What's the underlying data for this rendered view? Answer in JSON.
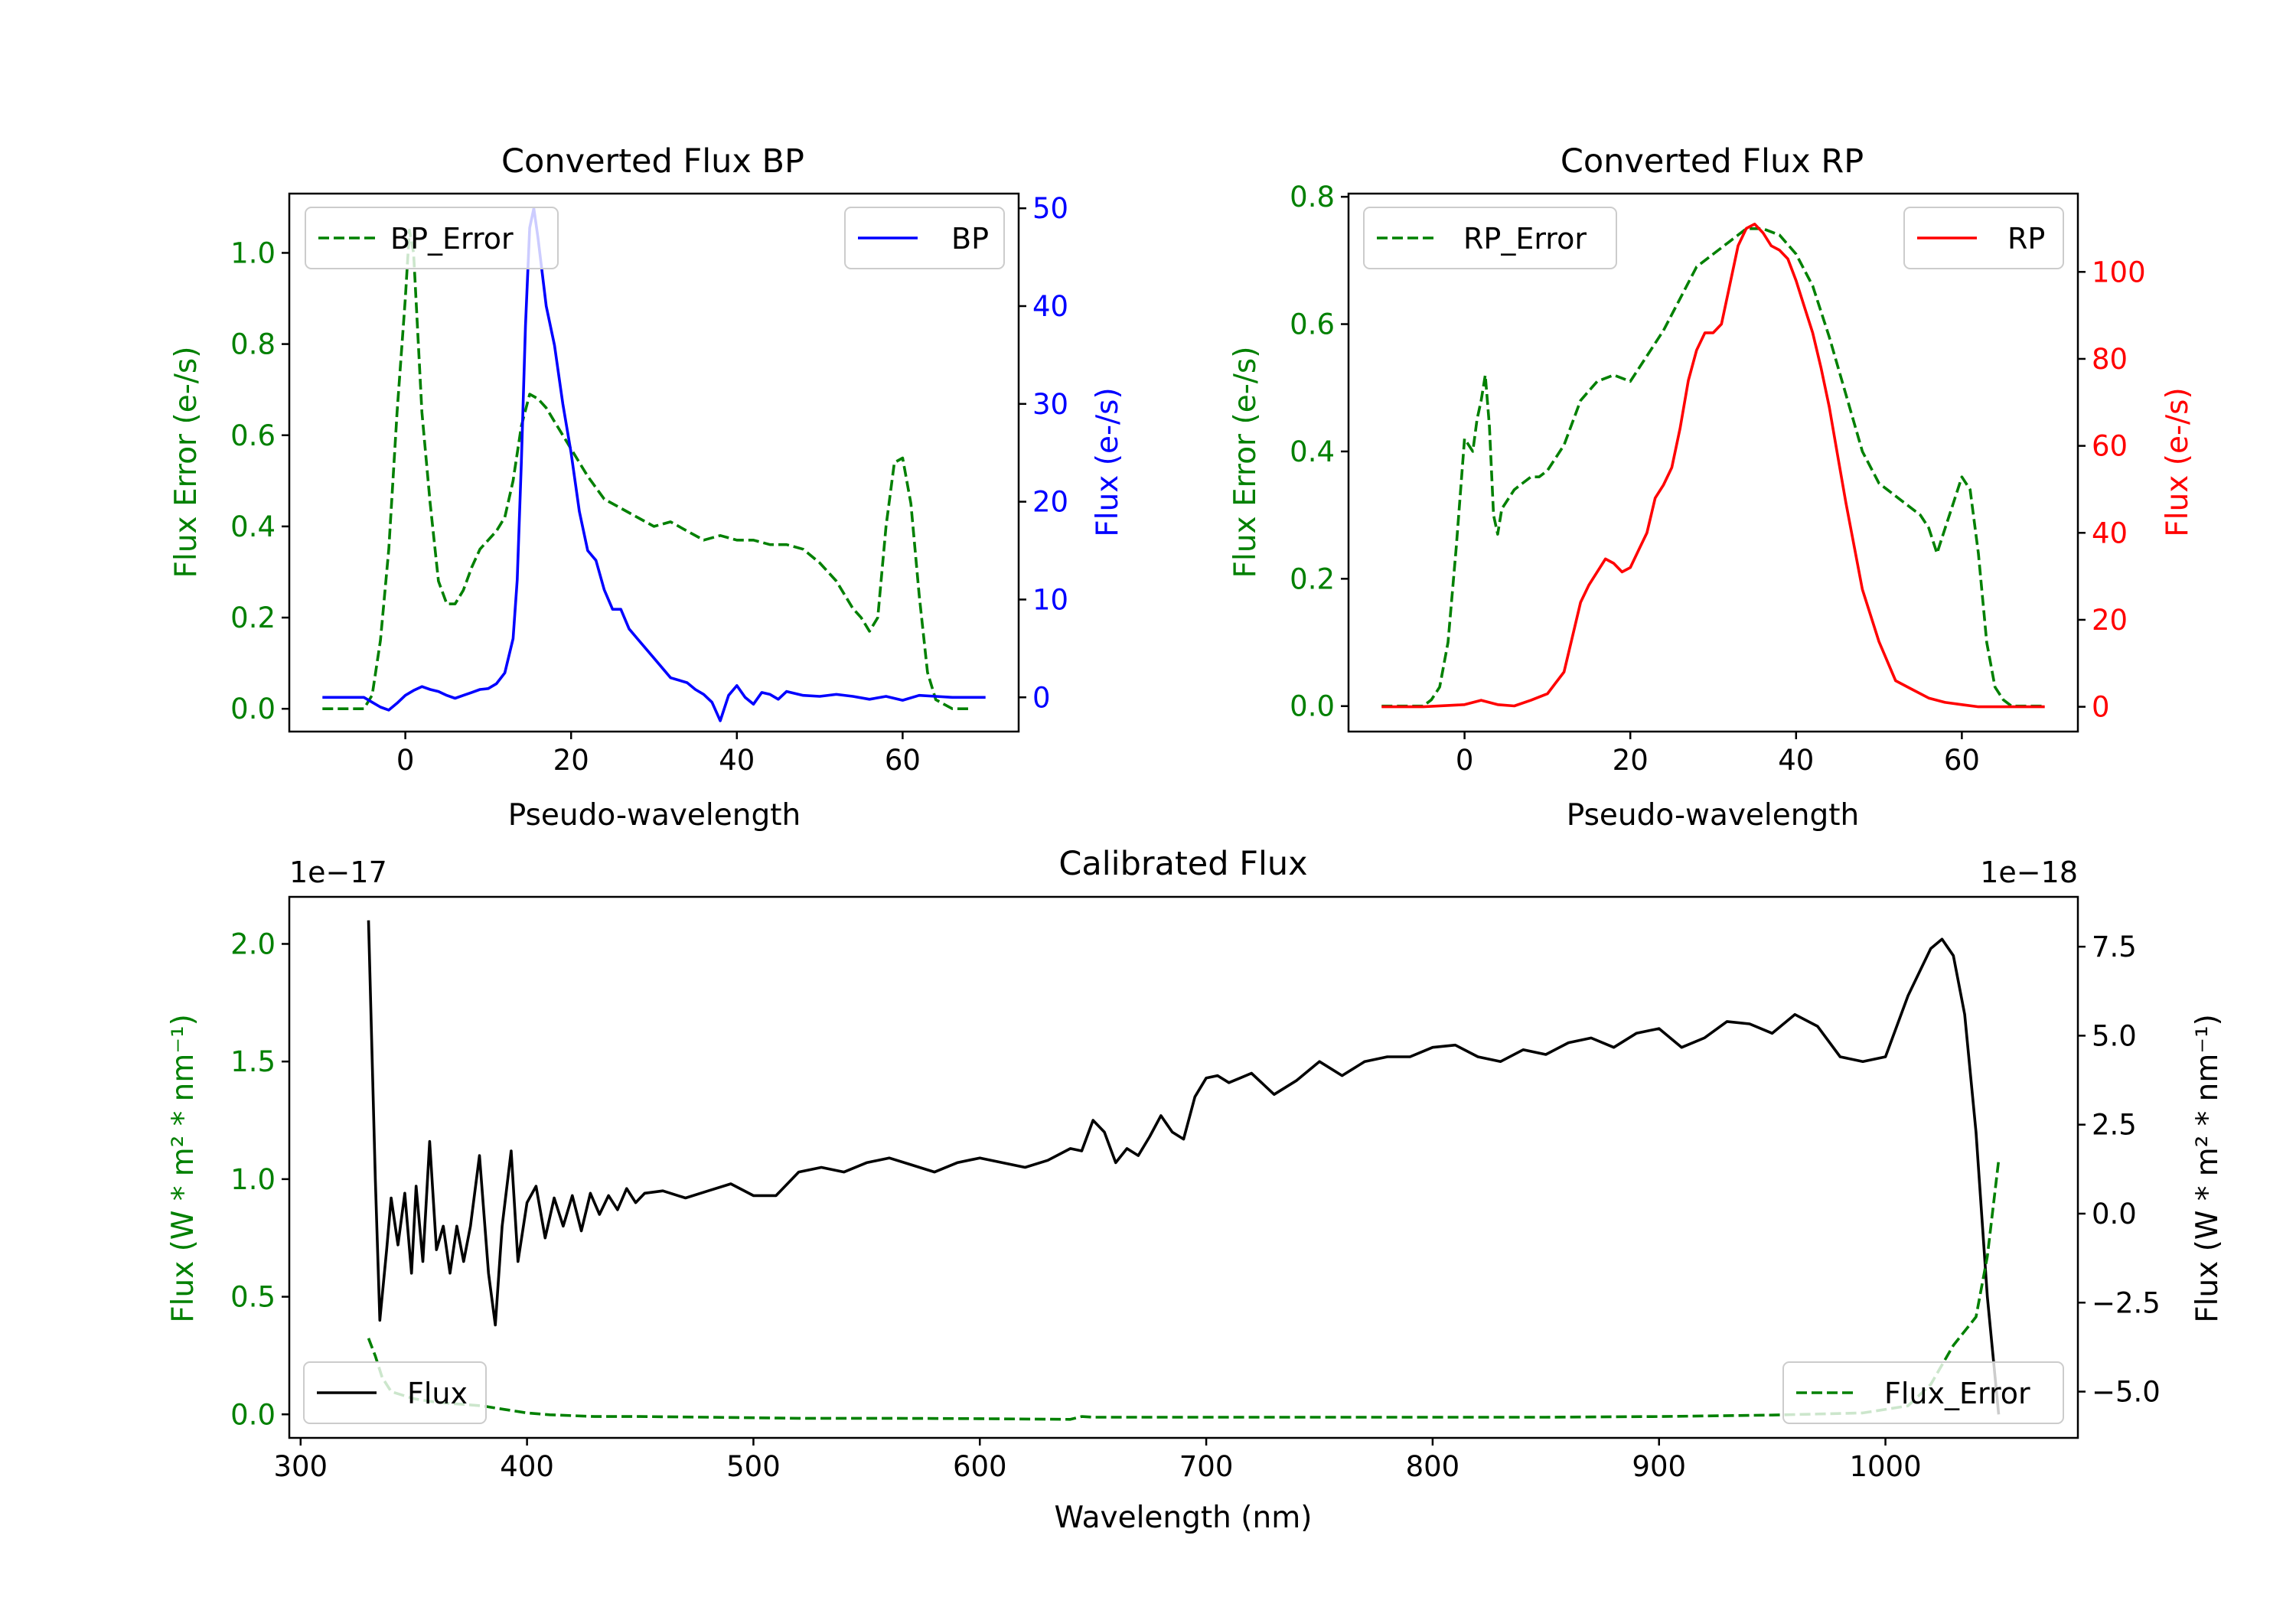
{
  "chart_data": [
    {
      "type": "line",
      "title": "Converted Flux BP",
      "xlabel": "Pseudo-wavelength",
      "xlim": [
        -14,
        74
      ],
      "xticks": [
        0,
        20,
        40,
        60
      ],
      "left_axis": {
        "label": "Flux Error (e-/s)",
        "color": "#008000",
        "ylim": [
          -0.05,
          1.13
        ],
        "ticks": [
          {
            "v": 0.0,
            "t": "0.0"
          },
          {
            "v": 0.2,
            "t": "0.2"
          },
          {
            "v": 0.4,
            "t": "0.4"
          },
          {
            "v": 0.6,
            "t": "0.6"
          },
          {
            "v": 0.8,
            "t": "0.8"
          },
          {
            "v": 1.0,
            "t": "1.0"
          }
        ]
      },
      "right_axis": {
        "label": "Flux (e-/s)",
        "color": "#0000ff",
        "ylim": [
          -3.5,
          51.5
        ],
        "ticks": [
          {
            "v": 0,
            "t": "0"
          },
          {
            "v": 10,
            "t": "10"
          },
          {
            "v": 20,
            "t": "20"
          },
          {
            "v": 30,
            "t": "30"
          },
          {
            "v": 40,
            "t": "40"
          },
          {
            "v": 50,
            "t": "50"
          }
        ]
      },
      "series": [
        {
          "name": "BP_Error",
          "axis": "left",
          "color": "#008000",
          "style": "dashed",
          "legend": "upper left",
          "x": [
            -10,
            -5,
            -4,
            -3,
            -2,
            -1,
            0,
            0.5,
            1,
            2,
            3,
            4,
            5,
            6,
            7,
            8,
            9,
            10,
            11,
            12,
            13,
            14,
            15,
            16,
            17,
            18,
            19,
            20,
            22,
            24,
            26,
            28,
            30,
            32,
            34,
            36,
            38,
            40,
            42,
            44,
            46,
            48,
            50,
            52,
            54,
            55,
            56,
            57,
            58,
            59,
            60,
            61,
            62,
            63,
            64,
            65,
            66,
            68
          ],
          "values": [
            0,
            0,
            0.03,
            0.15,
            0.35,
            0.65,
            0.9,
            1.05,
            1.0,
            0.65,
            0.45,
            0.28,
            0.23,
            0.23,
            0.26,
            0.31,
            0.35,
            0.37,
            0.39,
            0.42,
            0.5,
            0.62,
            0.69,
            0.68,
            0.66,
            0.63,
            0.6,
            0.57,
            0.51,
            0.46,
            0.44,
            0.42,
            0.4,
            0.41,
            0.39,
            0.37,
            0.38,
            0.37,
            0.37,
            0.36,
            0.36,
            0.35,
            0.32,
            0.28,
            0.22,
            0.2,
            0.17,
            0.2,
            0.4,
            0.54,
            0.55,
            0.45,
            0.25,
            0.08,
            0.02,
            0.01,
            0,
            0
          ]
        },
        {
          "name": "BP",
          "axis": "right",
          "color": "#0000ff",
          "style": "solid",
          "legend": "upper right",
          "x": [
            -10,
            -5,
            -4,
            -3,
            -2,
            -1,
            0,
            1,
            2,
            3,
            4,
            5,
            6,
            7,
            8,
            9,
            10,
            11,
            12,
            13,
            13.5,
            14,
            14.5,
            15,
            15.5,
            16,
            17,
            18,
            19,
            20,
            21,
            22,
            23,
            24,
            25,
            26,
            27,
            28,
            30,
            32,
            34,
            35,
            36,
            37,
            38,
            39,
            40,
            41,
            42,
            43,
            44,
            45,
            46,
            48,
            50,
            52,
            54,
            56,
            58,
            60,
            62,
            64,
            66,
            68,
            70
          ],
          "values": [
            0,
            0,
            -0.5,
            -1,
            -1.3,
            -0.6,
            0.2,
            0.7,
            1.1,
            0.8,
            0.6,
            0.2,
            -0.1,
            0.2,
            0.5,
            0.8,
            0.9,
            1.4,
            2.5,
            6,
            12,
            24,
            38,
            48,
            50,
            47,
            40,
            36,
            30,
            25,
            19,
            15,
            14,
            11,
            9,
            9,
            7,
            6,
            4,
            2,
            1.5,
            0.8,
            0.3,
            -0.5,
            -2.4,
            0.2,
            1.2,
            0,
            -0.7,
            0.5,
            0.3,
            -0.2,
            0.6,
            0.2,
            0.1,
            0.3,
            0.1,
            -0.2,
            0.1,
            -0.3,
            0.2,
            0.1,
            0,
            0,
            0
          ]
        }
      ]
    },
    {
      "type": "line",
      "title": "Converted Flux RP",
      "xlabel": "Pseudo-wavelength",
      "xlim": [
        -14,
        74
      ],
      "xticks": [
        0,
        20,
        40,
        60
      ],
      "left_axis": {
        "label": "Flux Error (e-/s)",
        "color": "#008000",
        "ylim": [
          -0.04,
          0.805
        ],
        "ticks": [
          {
            "v": 0.0,
            "t": "0.0"
          },
          {
            "v": 0.2,
            "t": "0.2"
          },
          {
            "v": 0.4,
            "t": "0.4"
          },
          {
            "v": 0.6,
            "t": "0.6"
          },
          {
            "v": 0.8,
            "t": "0.8"
          }
        ]
      },
      "right_axis": {
        "label": "Flux (e-/s)",
        "color": "#ff0000",
        "ylim": [
          -5.7,
          118
        ],
        "ticks": [
          {
            "v": 0,
            "t": "0"
          },
          {
            "v": 20,
            "t": "20"
          },
          {
            "v": 40,
            "t": "40"
          },
          {
            "v": 60,
            "t": "60"
          },
          {
            "v": 80,
            "t": "80"
          },
          {
            "v": 100,
            "t": "100"
          }
        ]
      },
      "series": [
        {
          "name": "RP_Error",
          "axis": "left",
          "color": "#008000",
          "style": "dashed",
          "legend": "upper left",
          "x": [
            -10,
            -5,
            -4,
            -3,
            -2,
            -1,
            0,
            1,
            1.5,
            2,
            2.5,
            3,
            3.5,
            4,
            4.5,
            5,
            6,
            7,
            8,
            9,
            10,
            12,
            14,
            16,
            18,
            20,
            22,
            24,
            26,
            28,
            30,
            32,
            34,
            36,
            38,
            40,
            42,
            44,
            46,
            48,
            50,
            52,
            54,
            55,
            56,
            57,
            58,
            59,
            60,
            61,
            62,
            63,
            64,
            65,
            66,
            68,
            70
          ],
          "values": [
            0,
            0,
            0.01,
            0.03,
            0.1,
            0.25,
            0.42,
            0.4,
            0.45,
            0.48,
            0.52,
            0.44,
            0.3,
            0.27,
            0.31,
            0.32,
            0.34,
            0.35,
            0.36,
            0.36,
            0.37,
            0.41,
            0.48,
            0.51,
            0.52,
            0.51,
            0.55,
            0.59,
            0.64,
            0.69,
            0.71,
            0.73,
            0.75,
            0.75,
            0.74,
            0.71,
            0.66,
            0.58,
            0.49,
            0.4,
            0.35,
            0.33,
            0.31,
            0.3,
            0.28,
            0.24,
            0.28,
            0.32,
            0.36,
            0.34,
            0.24,
            0.1,
            0.03,
            0.01,
            0,
            0,
            0
          ]
        },
        {
          "name": "RP",
          "axis": "right",
          "color": "#ff0000",
          "style": "solid",
          "legend": "upper right",
          "x": [
            -10,
            -5,
            0,
            2,
            4,
            6,
            8,
            10,
            12,
            13,
            14,
            15,
            16,
            17,
            18,
            19,
            20,
            21,
            22,
            23,
            24,
            25,
            26,
            27,
            28,
            29,
            30,
            31,
            32,
            33,
            34,
            35,
            36,
            37,
            38,
            39,
            40,
            41,
            42,
            43,
            44,
            45,
            46,
            47,
            48,
            50,
            52,
            54,
            56,
            58,
            60,
            62,
            64,
            66,
            68,
            70
          ],
          "values": [
            0,
            0,
            0.5,
            1.5,
            0.5,
            0.2,
            1.5,
            3,
            8,
            16,
            24,
            28,
            31,
            34,
            33,
            31,
            32,
            36,
            40,
            48,
            51,
            55,
            64,
            75,
            82,
            86,
            86,
            88,
            97,
            106,
            110,
            111,
            109,
            106,
            105,
            103,
            98,
            92,
            86,
            78,
            69,
            58,
            47,
            37,
            27,
            15,
            6,
            4,
            2,
            1,
            0.5,
            0,
            0,
            0,
            0,
            0
          ]
        }
      ]
    },
    {
      "type": "line",
      "title": "Calibrated Flux",
      "xlabel": "Wavelength (nm)",
      "xlim": [
        295,
        1085
      ],
      "xticks": [
        300,
        400,
        500,
        600,
        700,
        800,
        900,
        1000
      ],
      "left_axis": {
        "label": "Flux (W * m² * nm⁻¹)",
        "color": "#008000",
        "offset_text": "1e−17",
        "ylim": [
          -0.1,
          2.2
        ],
        "ticks": [
          {
            "v": 0.0,
            "t": "0.0"
          },
          {
            "v": 0.5,
            "t": "0.5"
          },
          {
            "v": 1.0,
            "t": "1.0"
          },
          {
            "v": 1.5,
            "t": "1.5"
          },
          {
            "v": 2.0,
            "t": "2.0"
          }
        ]
      },
      "right_axis": {
        "label": "Flux (W * m² * nm⁻¹)",
        "color": "#000000",
        "offset_text": "1e−18",
        "ylim": [
          -6.3,
          8.9
        ],
        "ticks": [
          {
            "v": -5.0,
            "t": "−5.0"
          },
          {
            "v": -2.5,
            "t": "−2.5"
          },
          {
            "v": 0.0,
            "t": "0.0"
          },
          {
            "v": 2.5,
            "t": "2.5"
          },
          {
            "v": 5.0,
            "t": "5.0"
          },
          {
            "v": 7.5,
            "t": "7.5"
          }
        ]
      },
      "series": [
        {
          "name": "Flux",
          "axis": "left",
          "color": "#000000",
          "style": "solid",
          "legend": "lower left",
          "x": [
            330,
            333,
            335,
            338,
            340,
            343,
            346,
            349,
            351,
            354,
            357,
            360,
            363,
            366,
            369,
            372,
            375,
            379,
            383,
            386,
            389,
            393,
            396,
            400,
            404,
            408,
            412,
            416,
            420,
            424,
            428,
            432,
            436,
            440,
            444,
            448,
            452,
            460,
            470,
            480,
            490,
            500,
            510,
            520,
            530,
            540,
            550,
            560,
            570,
            580,
            590,
            600,
            610,
            620,
            630,
            640,
            645,
            650,
            655,
            660,
            665,
            670,
            675,
            680,
            685,
            690,
            695,
            700,
            705,
            710,
            715,
            720,
            730,
            740,
            750,
            760,
            770,
            780,
            790,
            800,
            810,
            820,
            830,
            840,
            850,
            860,
            870,
            880,
            890,
            900,
            910,
            920,
            930,
            940,
            950,
            960,
            970,
            980,
            990,
            1000,
            1010,
            1020,
            1025,
            1030,
            1035,
            1040,
            1045,
            1050
          ],
          "values": [
            2.1,
            1.0,
            0.4,
            0.7,
            0.92,
            0.72,
            0.94,
            0.6,
            0.97,
            0.65,
            1.16,
            0.7,
            0.8,
            0.6,
            0.8,
            0.65,
            0.8,
            1.1,
            0.6,
            0.38,
            0.8,
            1.12,
            0.65,
            0.9,
            0.97,
            0.75,
            0.92,
            0.8,
            0.93,
            0.78,
            0.94,
            0.85,
            0.93,
            0.87,
            0.96,
            0.9,
            0.94,
            0.95,
            0.92,
            0.95,
            0.98,
            0.93,
            0.93,
            1.03,
            1.05,
            1.03,
            1.07,
            1.09,
            1.06,
            1.03,
            1.07,
            1.09,
            1.07,
            1.05,
            1.08,
            1.13,
            1.12,
            1.25,
            1.2,
            1.07,
            1.13,
            1.1,
            1.18,
            1.27,
            1.2,
            1.17,
            1.35,
            1.43,
            1.44,
            1.41,
            1.43,
            1.45,
            1.36,
            1.42,
            1.5,
            1.44,
            1.5,
            1.52,
            1.52,
            1.56,
            1.57,
            1.52,
            1.5,
            1.55,
            1.53,
            1.58,
            1.6,
            1.56,
            1.62,
            1.64,
            1.56,
            1.6,
            1.67,
            1.66,
            1.62,
            1.7,
            1.65,
            1.52,
            1.5,
            1.52,
            1.78,
            1.98,
            2.02,
            1.95,
            1.7,
            1.2,
            0.5,
            0.0
          ]
        },
        {
          "name": "Flux_Error",
          "axis": "right",
          "color": "#008000",
          "style": "dashed",
          "legend": "lower right",
          "x": [
            330,
            333,
            336,
            340,
            345,
            350,
            360,
            370,
            380,
            390,
            400,
            410,
            430,
            450,
            480,
            520,
            560,
            600,
            640,
            645,
            650,
            700,
            750,
            800,
            850,
            900,
            950,
            990,
            1010,
            1020,
            1030,
            1040,
            1045,
            1050
          ],
          "values": [
            -3.5,
            -4.0,
            -4.6,
            -5.0,
            -5.1,
            -5.2,
            -5.3,
            -5.35,
            -5.4,
            -5.5,
            -5.6,
            -5.65,
            -5.7,
            -5.7,
            -5.72,
            -5.75,
            -5.75,
            -5.76,
            -5.78,
            -5.7,
            -5.72,
            -5.72,
            -5.72,
            -5.72,
            -5.72,
            -5.7,
            -5.66,
            -5.6,
            -5.4,
            -4.8,
            -3.7,
            -2.9,
            -1.2,
            1.5
          ]
        }
      ]
    }
  ]
}
